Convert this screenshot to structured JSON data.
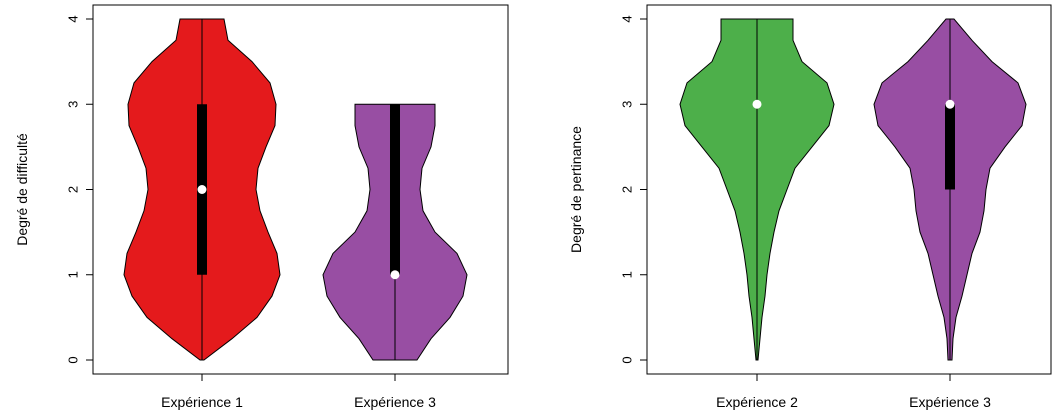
{
  "chart_data": [
    {
      "type": "violin",
      "ylabel": "Degré de difficulté",
      "ylim": [
        0,
        4
      ],
      "yticks": [
        0,
        1,
        2,
        3,
        4
      ],
      "categories": [
        "Expérience 1",
        "Expérience 3"
      ],
      "series": [
        {
          "category": "Expérience 1",
          "color": "#e41a1c",
          "median": 2,
          "q1": 1,
          "q3": 3,
          "min": 0,
          "max": 4,
          "density": [
            [
              0.0,
              0.02
            ],
            [
              0.25,
              0.3
            ],
            [
              0.5,
              0.55
            ],
            [
              0.75,
              0.7
            ],
            [
              1.0,
              0.78
            ],
            [
              1.25,
              0.75
            ],
            [
              1.5,
              0.66
            ],
            [
              1.75,
              0.58
            ],
            [
              2.0,
              0.54
            ],
            [
              2.25,
              0.56
            ],
            [
              2.5,
              0.64
            ],
            [
              2.75,
              0.73
            ],
            [
              3.0,
              0.74
            ],
            [
              3.25,
              0.68
            ],
            [
              3.5,
              0.5
            ],
            [
              3.75,
              0.26
            ],
            [
              4.0,
              0.22
            ]
          ]
        },
        {
          "category": "Expérience 3",
          "color": "#984ea3",
          "median": 1,
          "q1": 1,
          "q3": 3,
          "min": 0,
          "max": 3,
          "density": [
            [
              0.0,
              0.22
            ],
            [
              0.25,
              0.36
            ],
            [
              0.5,
              0.55
            ],
            [
              0.75,
              0.68
            ],
            [
              1.0,
              0.72
            ],
            [
              1.25,
              0.62
            ],
            [
              1.5,
              0.4
            ],
            [
              1.75,
              0.28
            ],
            [
              2.0,
              0.25
            ],
            [
              2.25,
              0.27
            ],
            [
              2.5,
              0.36
            ],
            [
              2.75,
              0.4
            ],
            [
              3.0,
              0.4
            ]
          ]
        }
      ]
    },
    {
      "type": "violin",
      "ylabel": "Degré de pertinance",
      "ylim": [
        0,
        4
      ],
      "yticks": [
        0,
        1,
        2,
        3,
        4
      ],
      "categories": [
        "Expérience 2",
        "Expérience 3"
      ],
      "series": [
        {
          "category": "Expérience 2",
          "color": "#4daf4a",
          "median": 3,
          "q1": 3,
          "q3": 3,
          "min": 0,
          "max": 4,
          "density": [
            [
              0.0,
              0.01
            ],
            [
              0.25,
              0.03
            ],
            [
              0.5,
              0.05
            ],
            [
              0.75,
              0.08
            ],
            [
              1.0,
              0.1
            ],
            [
              1.25,
              0.13
            ],
            [
              1.5,
              0.17
            ],
            [
              1.75,
              0.22
            ],
            [
              2.0,
              0.3
            ],
            [
              2.25,
              0.38
            ],
            [
              2.5,
              0.55
            ],
            [
              2.75,
              0.72
            ],
            [
              3.0,
              0.77
            ],
            [
              3.25,
              0.7
            ],
            [
              3.5,
              0.45
            ],
            [
              3.75,
              0.36
            ],
            [
              4.0,
              0.36
            ]
          ]
        },
        {
          "category": "Expérience 3",
          "color": "#984ea3",
          "median": 3,
          "q1": 2,
          "q3": 3,
          "min": 0,
          "max": 4,
          "density": [
            [
              0.0,
              0.02
            ],
            [
              0.25,
              0.03
            ],
            [
              0.5,
              0.06
            ],
            [
              0.75,
              0.12
            ],
            [
              1.0,
              0.17
            ],
            [
              1.25,
              0.22
            ],
            [
              1.5,
              0.3
            ],
            [
              1.75,
              0.34
            ],
            [
              2.0,
              0.36
            ],
            [
              2.25,
              0.4
            ],
            [
              2.5,
              0.55
            ],
            [
              2.75,
              0.72
            ],
            [
              3.0,
              0.76
            ],
            [
              3.25,
              0.68
            ],
            [
              3.5,
              0.42
            ],
            [
              3.75,
              0.22
            ],
            [
              4.0,
              0.04
            ]
          ]
        }
      ]
    }
  ]
}
